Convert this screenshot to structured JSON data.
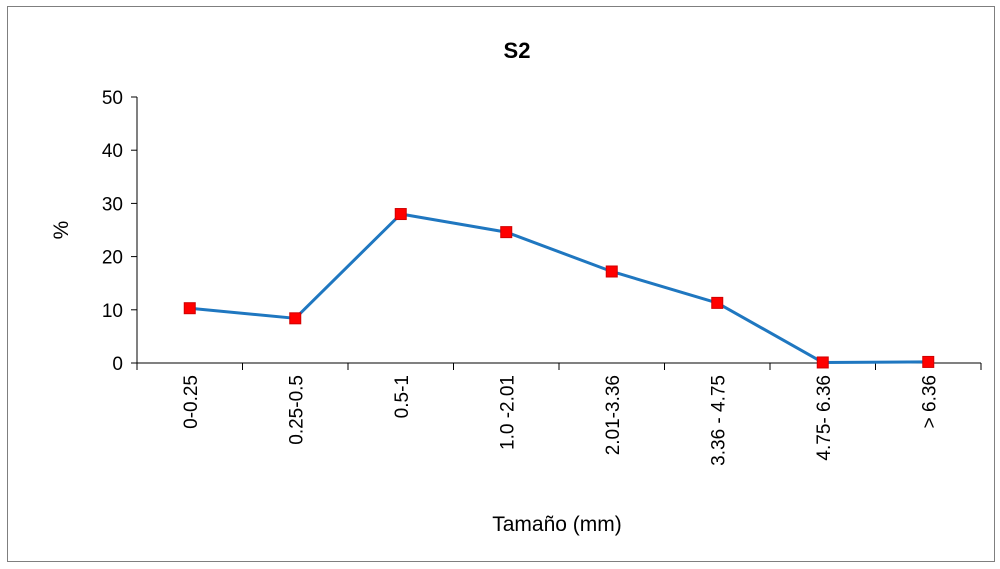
{
  "chart_data": {
    "type": "line",
    "title": "S2",
    "xlabel": "Tamaño (mm)",
    "ylabel": "%",
    "categories": [
      "0-0.25",
      "0.25-0.5",
      "0.5-1",
      "1.0 -2.01",
      "2.01-3.36",
      "3.36 - 4.75",
      "4.75- 6.36",
      "> 6.36"
    ],
    "series": [
      {
        "values": [
          10.3,
          8.4,
          28.0,
          24.6,
          17.2,
          11.3,
          0.1,
          0.2
        ]
      }
    ],
    "ylim": [
      0,
      50
    ],
    "yticks": [
      "0",
      "10",
      "20",
      "30",
      "40",
      "50"
    ],
    "grid": false,
    "legend": "none",
    "colors": {
      "line": "#1f77c0",
      "marker": "#ff0000",
      "axis": "#000000"
    }
  }
}
